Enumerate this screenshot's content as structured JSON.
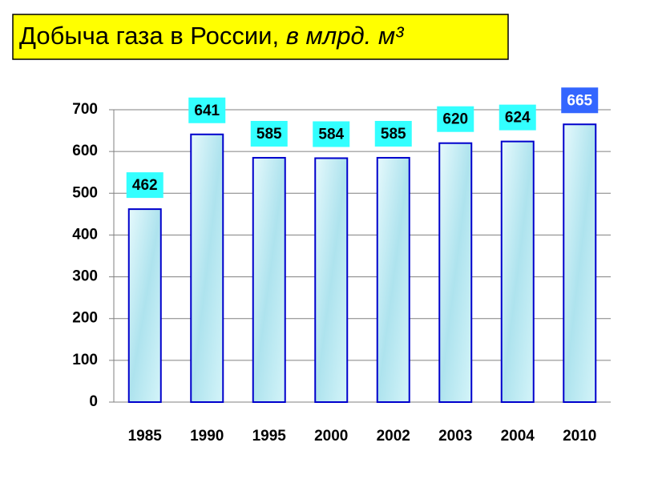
{
  "chart_data": {
    "type": "bar",
    "title": "Добыча газа в России,",
    "unit": "в млрд. м³",
    "categories": [
      "1985",
      "1990",
      "1995",
      "2000",
      "2002",
      "2003",
      "2004",
      "2010"
    ],
    "values": [
      462,
      641,
      585,
      584,
      585,
      620,
      624,
      665
    ],
    "color": "#c4eef5",
    "border_color": "#0000cc",
    "value_label_colors": [
      "#33ffff",
      "#33ffff",
      "#33ffff",
      "#33ffff",
      "#33ffff",
      "#33ffff",
      "#33ffff",
      "#3366ff"
    ],
    "ylim": [
      0,
      700
    ],
    "yticks": [
      0,
      100,
      200,
      300,
      400,
      500,
      600,
      700
    ],
    "grid": true
  }
}
